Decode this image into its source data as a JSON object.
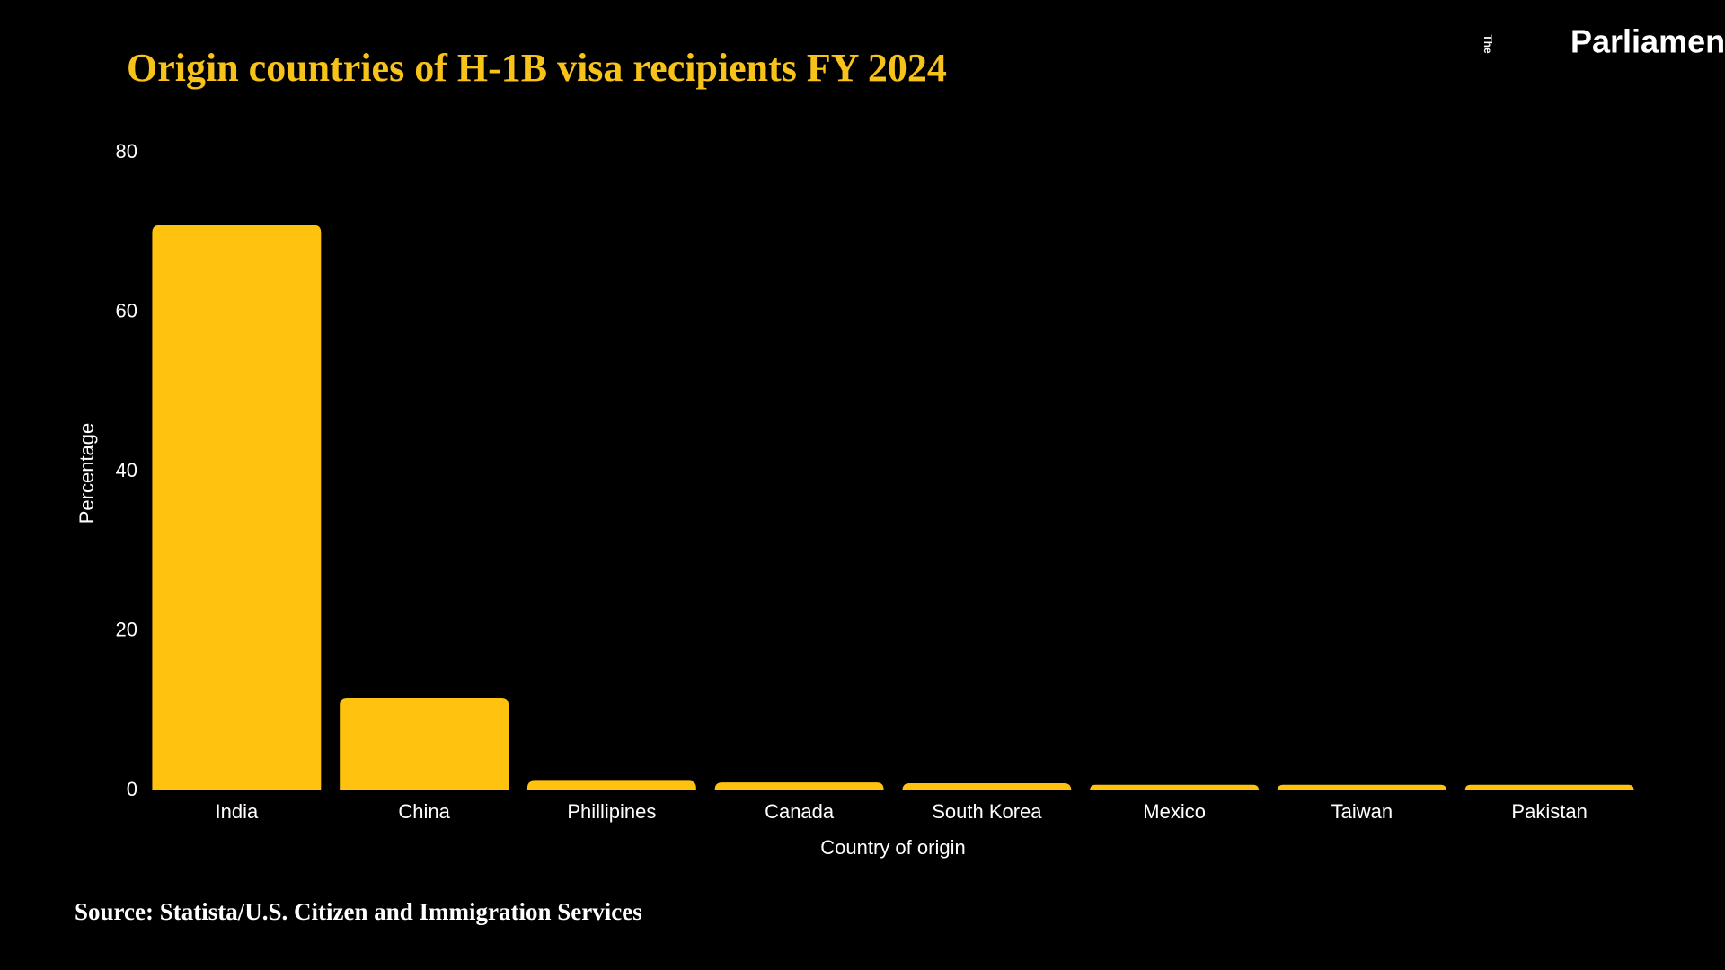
{
  "logo": {
    "prefix": "The",
    "name": "Parliament"
  },
  "chart_data": {
    "type": "bar",
    "title": "Origin countries of H-1B visa recipients FY 2024",
    "categories": [
      "India",
      "China",
      "Phillipines",
      "Canada",
      "South Korea",
      "Mexico",
      "Taiwan",
      "Pakistan"
    ],
    "values": [
      70.9,
      11.6,
      1.2,
      1.0,
      0.9,
      0.7,
      0.7,
      0.7
    ],
    "color": "#ffc20e",
    "xlabel": "Country of origin",
    "ylabel": "Percentage",
    "ylim": [
      0,
      80
    ],
    "yticks": [
      0,
      20,
      40,
      60,
      80
    ],
    "grid": false,
    "source": "Source: Statista/U.S. Citizen and Immigration Services"
  }
}
